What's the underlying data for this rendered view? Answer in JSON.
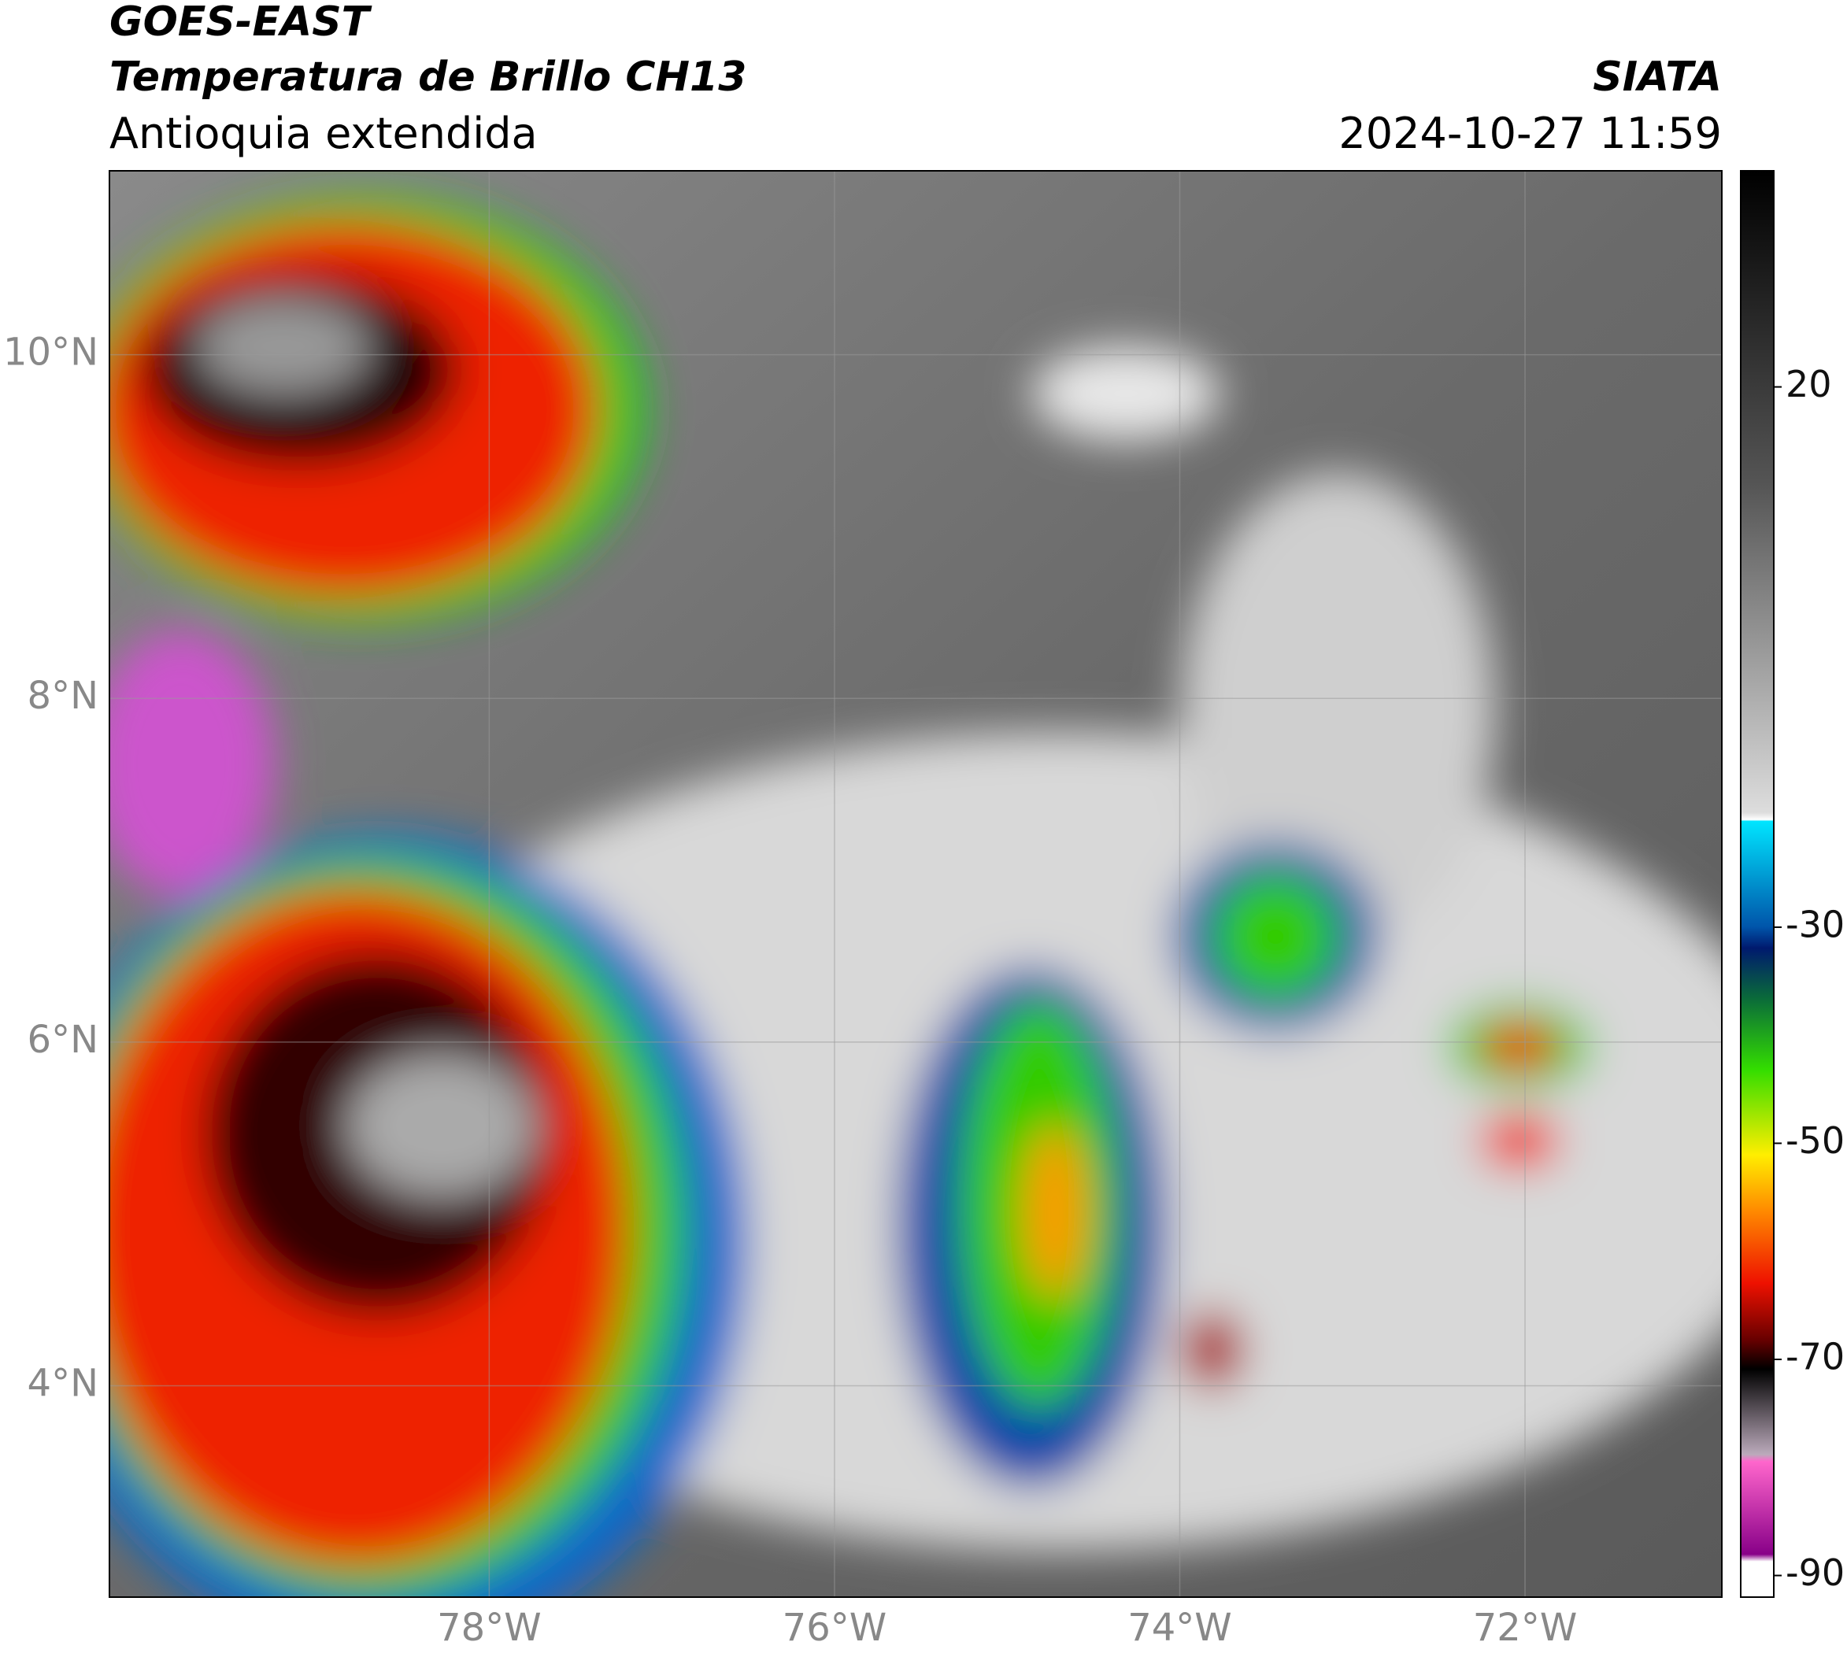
{
  "header": {
    "title": "GOES-EAST",
    "subtitle": "Temperatura de Brillo CH13",
    "region": "Antioquia extendida",
    "source": "SIATA",
    "datetime": "2024-10-27 11:59"
  },
  "map": {
    "xlim": [
      -80.2,
      -70.86
    ],
    "ylim": [
      2.77,
      11.07
    ],
    "xticks": [
      {
        "value": -78,
        "label": "78°W"
      },
      {
        "value": -76,
        "label": "76°W"
      },
      {
        "value": -74,
        "label": "74°W"
      },
      {
        "value": -72,
        "label": "72°W"
      }
    ],
    "yticks": [
      {
        "value": 10,
        "label": "10°N"
      },
      {
        "value": 8,
        "label": "8°N"
      },
      {
        "value": 6,
        "label": "6°N"
      },
      {
        "value": 4,
        "label": "4°N"
      }
    ]
  },
  "colorbar": {
    "lim": [
      -92,
      40
    ],
    "ticks": [
      20,
      -30,
      -50,
      -70,
      -90
    ]
  }
}
